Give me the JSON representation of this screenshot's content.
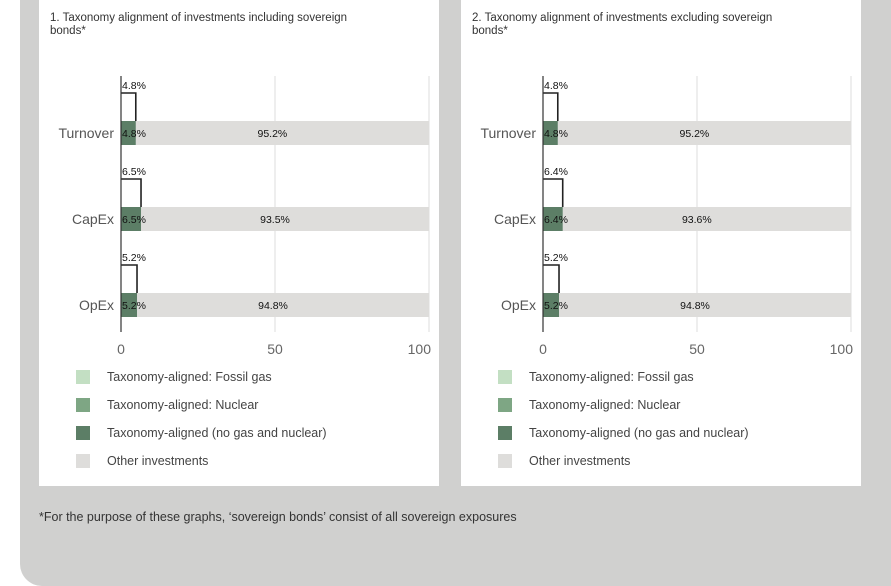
{
  "footnote": "*For the purpose of these graphs, ‘sovereign bonds’ consist of all sovereign exposures",
  "colors": {
    "fossil_gas": "#c3dfc3",
    "nuclear": "#7ea684",
    "aligned": "#5c7e66",
    "other": "#dedddb"
  },
  "legend": [
    {
      "label": "Taxonomy-aligned: Fossil gas",
      "color": "#c3dfc3"
    },
    {
      "label": "Taxonomy-aligned: Nuclear",
      "color": "#7ea684"
    },
    {
      "label": "Taxonomy-aligned (no gas and nuclear)",
      "color": "#5c7e66"
    },
    {
      "label": "Other investments",
      "color": "#dedddb"
    }
  ],
  "chart_data": [
    {
      "type": "bar",
      "orientation": "horizontal",
      "stacked": true,
      "title": "1. Taxonomy alignment of investments including sovereign bonds*",
      "categories": [
        "Turnover",
        "CapEx",
        "OpEx"
      ],
      "xlim": [
        0,
        100
      ],
      "xticks": [
        0,
        50,
        100
      ],
      "grid": true,
      "series": [
        {
          "name": "Taxonomy-aligned (no gas and nuclear)",
          "values": [
            4.8,
            6.5,
            5.2
          ]
        },
        {
          "name": "Other investments",
          "values": [
            95.2,
            93.5,
            94.8
          ]
        }
      ],
      "callouts": [
        "4.8%",
        "6.5%",
        "5.2%"
      ],
      "aligned_labels": [
        "4.8%",
        "6.5%",
        "5.2%"
      ],
      "other_labels": [
        "95.2%",
        "93.5%",
        "94.8%"
      ]
    },
    {
      "type": "bar",
      "orientation": "horizontal",
      "stacked": true,
      "title": "2. Taxonomy alignment of investments excluding sovereign bonds*",
      "categories": [
        "Turnover",
        "CapEx",
        "OpEx"
      ],
      "xlim": [
        0,
        100
      ],
      "xticks": [
        0,
        50,
        100
      ],
      "grid": true,
      "series": [
        {
          "name": "Taxonomy-aligned (no gas and nuclear)",
          "values": [
            4.8,
            6.4,
            5.2
          ]
        },
        {
          "name": "Other investments",
          "values": [
            95.2,
            93.6,
            94.8
          ]
        }
      ],
      "callouts": [
        "4.8%",
        "6.4%",
        "5.2%"
      ],
      "aligned_labels": [
        "4.8%",
        "6.4%",
        "5.2%"
      ],
      "other_labels": [
        "95.2%",
        "93.6%",
        "94.8%"
      ]
    }
  ]
}
